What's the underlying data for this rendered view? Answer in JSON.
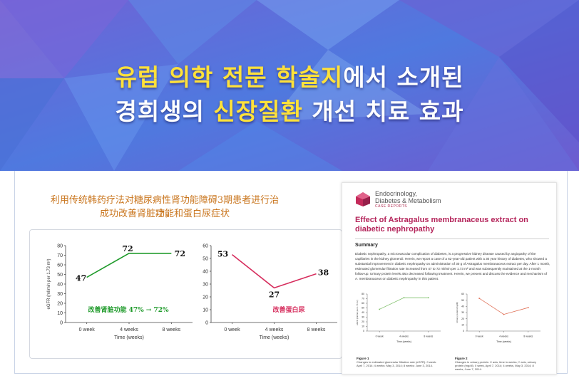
{
  "banner": {
    "line1_yellow": "유럽 의학 전문 학술지",
    "line1_white": "에서 소개된",
    "line2_white_a": "경희생의 ",
    "line2_yellow": "신장질환",
    "line2_white_b": " 개선 치료 효과"
  },
  "content": {
    "cn_title_line1": "利用传统韩药疗法对糖尿病性肾功能障碍3期患者进行治疗，",
    "cn_title_line2": "成功改善肾脏功能和蛋白尿症状"
  },
  "colors": {
    "green_series": "#1e9a2a",
    "red_series": "#d62d5d",
    "title_orange": "#c9751d",
    "paper_title": "#b4245a"
  },
  "chart_data": [
    {
      "type": "line",
      "categories": [
        "0 week",
        "4 weeks",
        "8 weeks"
      ],
      "series": [
        {
          "name": "",
          "values": [
            47,
            72,
            72
          ]
        }
      ],
      "ylabel": "eGFR (ml/min per 1.73 m²)",
      "xlabel": "Time (weeks)",
      "ylim": [
        0,
        80
      ],
      "yticks": [
        "0",
        "10",
        "20",
        "30",
        "40",
        "50",
        "60",
        "70",
        "80"
      ],
      "data_labels": [
        "47",
        "72",
        "72"
      ],
      "annotation": "改善肾脏功能  47% → 72%",
      "grid": false
    },
    {
      "type": "line",
      "categories": [
        "0 week",
        "4 weeks",
        "8 weeks"
      ],
      "series": [
        {
          "name": "",
          "values": [
            53,
            27,
            38
          ]
        }
      ],
      "ylabel": "",
      "xlabel": "Time (weeks)",
      "ylim": [
        0,
        60
      ],
      "yticks": [
        "0",
        "10",
        "20",
        "30",
        "40",
        "50",
        "60"
      ],
      "data_labels": [
        "53",
        "27",
        "38"
      ],
      "annotation": "改善蛋白尿",
      "grid": false
    }
  ],
  "paper": {
    "journal_line1": "Endocrinology,",
    "journal_line2": "Diabetes & Metabolism",
    "journal_sub": "CASE REPORTS",
    "title": "Effect of Astragalus membranaceus extract on diabetic nephropathy",
    "summary_heading": "Summary",
    "summary_text": "Diabetic nephropathy, a microvascular complication of diabetes, is a progressive kidney disease caused by angiopathy of the capillaries in the kidney glomeruli. Herein, we report a case of a 62-year-old patient with a 30 year history of diabetes, who showed a substantial improvement in diabetic nephropathy on administration of 30 g of Astragalus membranaceus extract per day. After 1 month, estimated glomerular filtration rate increased from 47 to 72 ml/min per 1.73 m² and was subsequently maintained at the 1-month follow-up. Urinary protein levels also decreased following treatment. Herein, we present and discuss the evidence and mechanism of A. membranaceus on diabetic nephropathy in this patient.",
    "figure1_label": "Figure 1",
    "figure1_caption": "Changes in estimated glomerular filtration rate (eGFR). 0 week: April 7, 2014; 4 weeks: May 3, 2014; 8 weeks: June 3, 2014.",
    "figure2_label": "Figure 2",
    "figure2_caption": "Changes in urinary protein. X axis, time in weeks; Y axis, urinary protein (mg/dl). 0 week, April 7, 2014; 4 weeks, May 3, 2014; 8 weeks, June 7, 2014.",
    "mini_xlabel": "Time (weeks)",
    "mini1_ylabel": "eGFR (ml/min per 1.73 m²)",
    "mini2_ylabel": "Urinary protein (mg/dl)"
  }
}
